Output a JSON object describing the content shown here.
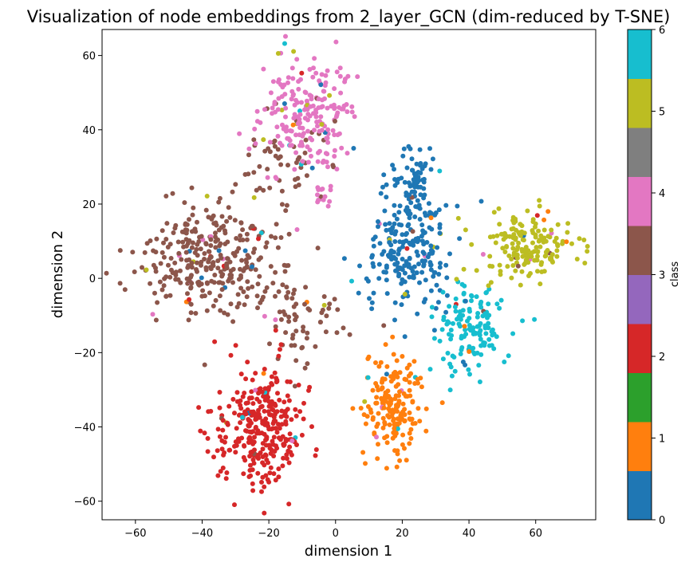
{
  "chart_data": {
    "type": "scatter",
    "title": "Visualization of node embeddings from 2_layer_GCN (dim-reduced by T-SNE)",
    "xlabel": "dimension 1",
    "ylabel": "dimension 2",
    "xlim": [
      -70,
      78
    ],
    "ylim": [
      -65,
      67
    ],
    "xticks": [
      -60,
      -40,
      -20,
      0,
      20,
      40,
      60
    ],
    "yticks": [
      -60,
      -40,
      -20,
      0,
      20,
      40,
      60
    ],
    "grid": false,
    "colorbar": {
      "label": "class",
      "range": [
        0,
        6
      ],
      "ticks": [
        0,
        1,
        2,
        3,
        4,
        5,
        6
      ],
      "colors": [
        "#1f77b4",
        "#ff7f0e",
        "#2ca02c",
        "#d62728",
        "#9467bd",
        "#8c564b",
        "#e377c2",
        "#7f7f7f",
        "#bcbd22",
        "#17becf"
      ]
    },
    "class_colors": {
      "0": "#1f77b4",
      "1": "#ff7f0e",
      "2": "#d62728",
      "3": "#8c564b",
      "4": "#e377c2",
      "5": "#bcbd22",
      "6": "#17becf"
    },
    "clusters": [
      {
        "class": 3,
        "cx": -35,
        "cy": 5,
        "sx": 12,
        "sy": 7,
        "n": 330
      },
      {
        "class": 3,
        "cx": -10,
        "cy": -12,
        "sx": 7,
        "sy": 6,
        "n": 60
      },
      {
        "class": 3,
        "cx": -15,
        "cy": 32,
        "sx": 7,
        "sy": 5,
        "n": 50
      },
      {
        "class": 4,
        "cx": -8,
        "cy": 44,
        "sx": 7,
        "sy": 8,
        "n": 220
      },
      {
        "class": 4,
        "cx": -4,
        "cy": 22,
        "sx": 2,
        "sy": 2,
        "n": 15
      },
      {
        "class": 0,
        "cx": 22,
        "cy": 8,
        "sx": 7,
        "sy": 9,
        "n": 230
      },
      {
        "class": 0,
        "cx": 24,
        "cy": 27,
        "sx": 3,
        "sy": 4,
        "n": 60
      },
      {
        "class": 6,
        "cx": 40,
        "cy": -14,
        "sx": 5,
        "sy": 6,
        "n": 140
      },
      {
        "class": 5,
        "cx": 57,
        "cy": 9,
        "sx": 7,
        "sy": 5,
        "n": 170
      },
      {
        "class": 1,
        "cx": 17,
        "cy": -35,
        "sx": 4,
        "sy": 7,
        "n": 190
      },
      {
        "class": 2,
        "cx": -22,
        "cy": -40,
        "sx": 7,
        "sy": 8,
        "n": 310
      }
    ]
  }
}
